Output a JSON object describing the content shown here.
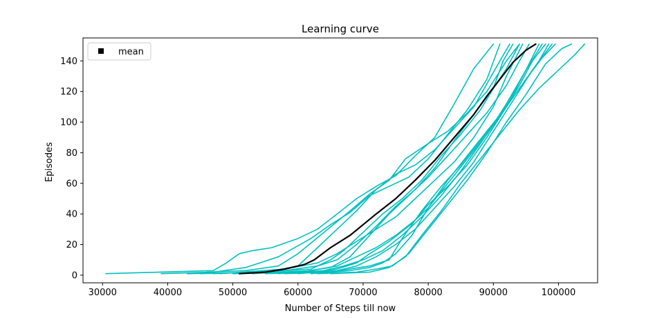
{
  "chart_data": {
    "type": "line",
    "title": "Learning curve",
    "xlabel": "Number of Steps till now",
    "ylabel": "Episodes",
    "xlim": [
      27000,
      106000
    ],
    "ylim": [
      -5,
      155
    ],
    "xticks": [
      30000,
      40000,
      50000,
      60000,
      70000,
      80000,
      90000,
      100000
    ],
    "yticks": [
      0,
      20,
      40,
      60,
      80,
      100,
      120,
      140
    ],
    "grid": false,
    "legend": {
      "position": "top-left",
      "entries": [
        {
          "label": "mean",
          "marker": "square",
          "color": "#000000"
        }
      ]
    },
    "colors": {
      "runs": "#00bfbf",
      "mean": "#000000"
    },
    "series": [
      {
        "name": "mean",
        "x": [
          51000,
          55000,
          58000,
          61000,
          62500,
          65000,
          68000,
          70000,
          72000,
          75000,
          78000,
          81000,
          84000,
          87000,
          89000,
          91000,
          93000,
          95000,
          96500
        ],
        "y": [
          1,
          2,
          4,
          7,
          10,
          18,
          26,
          33,
          40,
          50,
          62,
          75,
          90,
          105,
          117,
          128,
          139,
          147,
          151
        ]
      },
      {
        "x": [
          30500,
          47000,
          49000,
          51000,
          53000,
          56000,
          60000,
          63000,
          66000,
          69000,
          72000,
          75000,
          78000,
          81000,
          84000,
          87000,
          90000
        ],
        "y": [
          1,
          3,
          8,
          14,
          16,
          18,
          24,
          30,
          40,
          50,
          58,
          65,
          78,
          90,
          112,
          135,
          151
        ]
      },
      {
        "x": [
          39000,
          47000,
          52000,
          57000,
          62000,
          65000,
          68000,
          71000,
          74000,
          77000,
          80000,
          83000,
          86000,
          89000,
          91000
        ],
        "y": [
          1,
          2,
          5,
          12,
          24,
          33,
          41,
          52,
          58,
          64,
          76,
          92,
          108,
          128,
          151
        ]
      },
      {
        "x": [
          46000,
          52000,
          57000,
          60000,
          64000,
          68000,
          71000,
          74000,
          76500,
          80000,
          83000,
          86000,
          89000,
          92000,
          94000
        ],
        "y": [
          2,
          3,
          6,
          14,
          28,
          42,
          53,
          62,
          76,
          86,
          94,
          106,
          120,
          140,
          151
        ]
      },
      {
        "x": [
          45000,
          55000,
          60000,
          63000,
          66000,
          69000,
          72000,
          75000,
          78000,
          81000,
          84000,
          87000,
          89000,
          91000,
          92500
        ],
        "y": [
          1,
          2,
          6,
          18,
          30,
          42,
          56,
          66,
          72,
          82,
          96,
          110,
          125,
          140,
          151
        ]
      },
      {
        "x": [
          43000,
          55000,
          62000,
          65000,
          67000,
          70000,
          73000,
          76000,
          79000,
          82000,
          85000,
          88000,
          90000,
          91500,
          93000
        ],
        "y": [
          1,
          2,
          4,
          10,
          16,
          28,
          40,
          50,
          62,
          78,
          92,
          108,
          122,
          140,
          151
        ]
      },
      {
        "x": [
          47000,
          58000,
          63000,
          66000,
          69000,
          72000,
          75000,
          78000,
          81000,
          84000,
          87000,
          90000,
          92000,
          94000
        ],
        "y": [
          1,
          3,
          6,
          10,
          20,
          32,
          45,
          56,
          70,
          88,
          105,
          122,
          135,
          151
        ]
      },
      {
        "x": [
          50000,
          60000,
          65000,
          68000,
          71000,
          74000,
          77000,
          80000,
          83000,
          86000,
          89000,
          92000,
          94000,
          95500
        ],
        "y": [
          1,
          2,
          5,
          12,
          26,
          40,
          52,
          64,
          78,
          92,
          106,
          124,
          140,
          151
        ]
      },
      {
        "x": [
          48000,
          58000,
          63000,
          66000,
          69000,
          72000,
          75000,
          78000,
          81000,
          84000,
          87000,
          90000,
          92000,
          94500
        ],
        "y": [
          1,
          4,
          8,
          14,
          22,
          30,
          38,
          50,
          62,
          74,
          90,
          110,
          130,
          151
        ]
      },
      {
        "x": [
          53000,
          62000,
          66000,
          69000,
          72000,
          75000,
          78000,
          80000,
          83000,
          86000,
          89000,
          92000,
          95000,
          97500
        ],
        "y": [
          1,
          3,
          6,
          12,
          18,
          26,
          36,
          46,
          58,
          72,
          90,
          110,
          134,
          151
        ]
      },
      {
        "x": [
          55000,
          63000,
          66000,
          69000,
          71000,
          74000,
          77000,
          80000,
          83000,
          86000,
          89000,
          92000,
          95000,
          97000
        ],
        "y": [
          1,
          2,
          4,
          8,
          14,
          22,
          32,
          44,
          60,
          76,
          92,
          112,
          134,
          151
        ]
      },
      {
        "x": [
          57000,
          64000,
          67000,
          70000,
          73000,
          76000,
          79000,
          82000,
          85000,
          88000,
          91000,
          94000,
          96000,
          98000
        ],
        "y": [
          1,
          3,
          6,
          10,
          16,
          26,
          38,
          52,
          68,
          86,
          104,
          124,
          140,
          151
        ]
      },
      {
        "x": [
          58000,
          65000,
          68000,
          71000,
          74000,
          76000,
          79000,
          82000,
          85000,
          88000,
          91000,
          94000,
          97000,
          98500
        ],
        "y": [
          1,
          2,
          4,
          6,
          10,
          24,
          42,
          58,
          72,
          88,
          104,
          122,
          140,
          151
        ]
      },
      {
        "x": [
          60000,
          66000,
          69000,
          72000,
          75000,
          78000,
          81000,
          84000,
          87000,
          90000,
          93000,
          96000,
          99000
        ],
        "y": [
          1,
          3,
          6,
          12,
          20,
          30,
          44,
          58,
          74,
          94,
          114,
          134,
          151
        ]
      },
      {
        "x": [
          62000,
          68000,
          71000,
          73000,
          75000,
          77500,
          80000,
          83000,
          86000,
          89000,
          92000,
          95000,
          97500,
          99500
        ],
        "y": [
          1,
          3,
          5,
          8,
          14,
          26,
          44,
          62,
          78,
          94,
          110,
          128,
          142,
          151
        ]
      },
      {
        "x": [
          63000,
          69000,
          72000,
          74500,
          77000,
          80000,
          83000,
          86000,
          89000,
          92000,
          95000,
          98000,
          100500,
          102000
        ],
        "y": [
          1,
          2,
          4,
          6,
          14,
          30,
          46,
          62,
          80,
          100,
          118,
          138,
          148,
          151
        ]
      },
      {
        "x": [
          65000,
          71000,
          74000,
          76500,
          79000,
          82000,
          85000,
          88000,
          91000,
          94000,
          97000,
          100000,
          102500,
          104000
        ],
        "y": [
          1,
          2,
          5,
          12,
          26,
          42,
          60,
          76,
          92,
          108,
          122,
          134,
          144,
          151
        ]
      }
    ]
  }
}
